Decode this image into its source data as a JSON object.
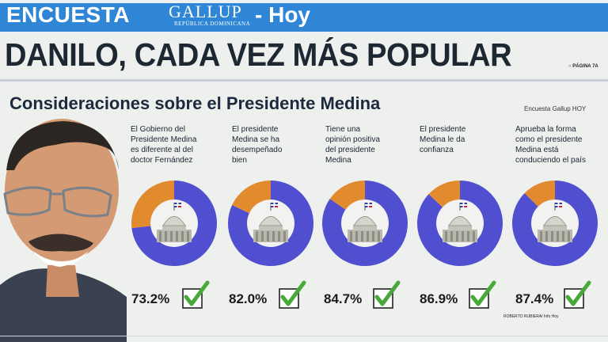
{
  "banner": {
    "encuesta": "ENCUESTA",
    "gallup": "GALLUP",
    "gallup_sub": "REPÚBLICA DOMINICANA",
    "hoy": "- Hoy"
  },
  "headline": "DANILO, CADA VEZ MÁS POPULAR",
  "page_ref": "○ PÁGINA 7A",
  "subtitle": "Consideraciones sobre el Presidente Medina",
  "source": "Encuesta Gallup HOY",
  "credit": "ROBERTO RUBIERA/ Info Hoy",
  "colors": {
    "positive": "#4f4fcf",
    "negative": "#e18a2e",
    "check": "#48a83a",
    "banner": "#2f86d6"
  },
  "chart_data": {
    "type": "pie",
    "items": [
      {
        "lines": [
          "El Gobierno del",
          "Presidente Medina",
          "es diferente al del",
          "doctor Fernández"
        ],
        "value": 73.2,
        "label": "73.2%"
      },
      {
        "lines": [
          "El presidente",
          "Medina se ha",
          "desempeñado",
          "bien"
        ],
        "value": 82.0,
        "label": "82.0%"
      },
      {
        "lines": [
          "Tiene una",
          "opinión positiva",
          "del presidente",
          "Medina"
        ],
        "value": 84.7,
        "label": "84.7%"
      },
      {
        "lines": [
          "El presidente",
          "Medina le da",
          "confianza"
        ],
        "value": 86.9,
        "label": "86.9%"
      },
      {
        "lines": [
          "Aprueba la forma",
          "como el presidente",
          "Medina está",
          "conduciendo el país"
        ],
        "value": 87.4,
        "label": "87.4%"
      }
    ]
  }
}
